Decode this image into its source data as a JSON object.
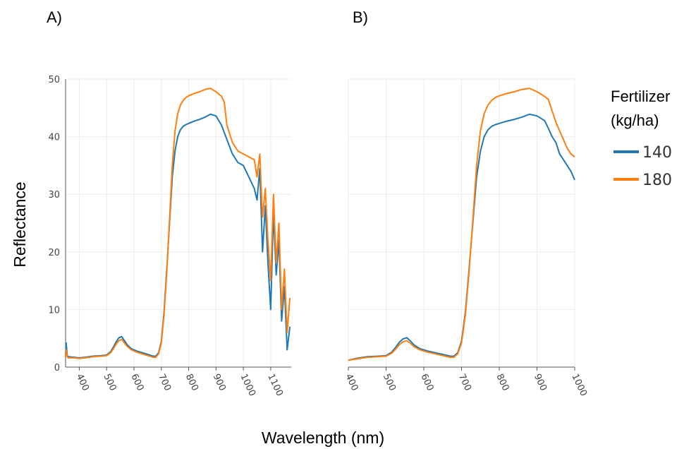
{
  "chart_data": {
    "type": "line",
    "xlabel": "Wavelength (nm)",
    "ylabel": "Reflectance",
    "legend": {
      "title": "Fertilizer (kg/ha)",
      "title_lines": [
        "Fertilizer",
        "(kg/ha)"
      ],
      "placement": "right"
    },
    "series_colors": {
      "140": "#1f77b4",
      "180": "#ff7f0e"
    },
    "panels": [
      {
        "label": "A)",
        "xlim": [
          350,
          1175
        ],
        "ylim": [
          0,
          50
        ],
        "xticks": [
          400,
          500,
          600,
          700,
          800,
          900,
          1000,
          1100
        ],
        "yticks": [
          0,
          10,
          20,
          30,
          40,
          50
        ],
        "grid": true,
        "series": [
          {
            "name": "140",
            "x": [
              350,
              352,
              356,
              360,
              380,
              400,
              420,
              450,
              480,
              500,
              515,
              525,
              535,
              545,
              555,
              565,
              575,
              590,
              610,
              630,
              650,
              670,
              680,
              690,
              700,
              710,
              720,
              730,
              740,
              750,
              760,
              770,
              780,
              790,
              800,
              820,
              840,
              860,
              880,
              900,
              920,
              940,
              960,
              980,
              1000,
              1020,
              1040,
              1050,
              1060,
              1070,
              1080,
              1090,
              1100,
              1110,
              1120,
              1130,
              1140,
              1150,
              1160,
              1170
            ],
            "y": [
              2.0,
              4.2,
              2.0,
              1.8,
              1.7,
              1.6,
              1.7,
              1.9,
              2.0,
              2.1,
              2.7,
              3.5,
              4.4,
              5.1,
              5.3,
              4.6,
              3.9,
              3.2,
              2.8,
              2.5,
              2.2,
              1.9,
              1.9,
              2.5,
              4.5,
              9.5,
              17.0,
              25.0,
              33.0,
              37.5,
              40.0,
              41.2,
              41.8,
              42.1,
              42.3,
              42.7,
              43.0,
              43.4,
              43.9,
              43.6,
              42.0,
              39.5,
              37.0,
              35.5,
              35.0,
              33.0,
              31.0,
              29.0,
              34.5,
              20.0,
              28.0,
              18.0,
              10.0,
              27.0,
              16.0,
              22.0,
              8.0,
              14.0,
              3.0,
              7.0
            ]
          },
          {
            "name": "180",
            "x": [
              350,
              352,
              356,
              360,
              380,
              400,
              420,
              450,
              480,
              500,
              515,
              525,
              535,
              545,
              555,
              565,
              575,
              590,
              610,
              630,
              650,
              670,
              680,
              690,
              700,
              710,
              720,
              730,
              740,
              750,
              760,
              770,
              780,
              790,
              800,
              820,
              840,
              860,
              880,
              900,
              920,
              930,
              940,
              960,
              980,
              1000,
              1020,
              1040,
              1050,
              1060,
              1070,
              1080,
              1090,
              1100,
              1110,
              1120,
              1130,
              1140,
              1150,
              1160,
              1170
            ],
            "y": [
              1.8,
              3.0,
              1.8,
              1.6,
              1.6,
              1.5,
              1.6,
              1.8,
              1.9,
              2.0,
              2.5,
              3.2,
              4.0,
              4.6,
              4.8,
              4.2,
              3.6,
              3.0,
              2.6,
              2.3,
              2.0,
              1.7,
              1.7,
              2.3,
              4.2,
              9.0,
              16.5,
              25.5,
              35.0,
              41.0,
              44.0,
              45.5,
              46.3,
              46.8,
              47.1,
              47.5,
              47.8,
              48.2,
              48.4,
              47.8,
              47.0,
              46.0,
              42.0,
              39.0,
              37.5,
              37.0,
              36.5,
              36.0,
              33.0,
              37.0,
              26.0,
              31.0,
              22.0,
              15.0,
              30.0,
              18.0,
              25.0,
              10.0,
              17.0,
              6.0,
              12.0
            ]
          }
        ]
      },
      {
        "label": "B)",
        "xlim": [
          400,
          1000
        ],
        "ylim": [
          0,
          50
        ],
        "xticks": [
          400,
          500,
          600,
          700,
          800,
          900,
          1000
        ],
        "yticks": [],
        "grid": true,
        "series": [
          {
            "name": "140",
            "x": [
              400,
              420,
              450,
              480,
              500,
              515,
              525,
              535,
              545,
              555,
              565,
              575,
              590,
              610,
              630,
              650,
              670,
              680,
              690,
              700,
              710,
              720,
              730,
              740,
              750,
              760,
              770,
              780,
              790,
              800,
              820,
              840,
              860,
              880,
              900,
              920,
              930,
              940,
              950,
              960,
              970,
              980,
              990,
              1000
            ],
            "y": [
              1.2,
              1.5,
              1.8,
              1.9,
              2.0,
              2.6,
              3.4,
              4.3,
              4.9,
              5.1,
              4.5,
              3.8,
              3.2,
              2.8,
              2.5,
              2.2,
              1.9,
              1.9,
              2.5,
              4.5,
              9.5,
              17.0,
              25.0,
              33.0,
              37.5,
              40.0,
              41.2,
              41.8,
              42.1,
              42.3,
              42.7,
              43.0,
              43.4,
              43.9,
              43.6,
              42.8,
              41.5,
              40.0,
              39.0,
              37.0,
              36.0,
              35.0,
              34.0,
              32.5
            ]
          },
          {
            "name": "180",
            "x": [
              400,
              420,
              450,
              480,
              500,
              515,
              525,
              535,
              545,
              555,
              565,
              575,
              590,
              610,
              630,
              650,
              670,
              680,
              690,
              700,
              710,
              720,
              730,
              740,
              750,
              760,
              770,
              780,
              790,
              800,
              820,
              840,
              860,
              880,
              900,
              920,
              930,
              940,
              950,
              960,
              970,
              980,
              990,
              1000
            ],
            "y": [
              1.2,
              1.4,
              1.7,
              1.8,
              1.9,
              2.4,
              3.1,
              3.9,
              4.4,
              4.6,
              4.1,
              3.5,
              3.0,
              2.6,
              2.3,
              2.0,
              1.7,
              1.7,
              2.3,
              4.2,
              9.0,
              16.5,
              25.5,
              35.0,
              41.0,
              44.0,
              45.5,
              46.3,
              46.8,
              47.1,
              47.5,
              47.8,
              48.2,
              48.4,
              47.8,
              47.0,
              46.5,
              44.5,
              42.5,
              41.0,
              39.5,
              38.0,
              37.0,
              36.5
            ]
          }
        ]
      }
    ]
  }
}
